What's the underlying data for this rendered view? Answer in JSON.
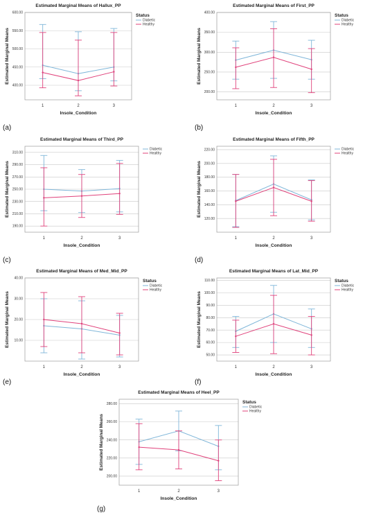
{
  "colors": {
    "diabetic": "#7fb6d9",
    "healthy": "#e0407a"
  },
  "chart_data": [
    {
      "id": "a",
      "type": "line",
      "panel_label": "(a)",
      "title": "Estimated Marginal Means of Hallux_PP",
      "xlabel": "Insole_Condition",
      "ylabel": "Estimated Marginal Means",
      "categories": [
        "1",
        "2",
        "3"
      ],
      "ylim": [
        360,
        600
      ],
      "yticks": [
        400,
        450,
        500,
        550,
        600
      ],
      "ytick_labels": [
        "400.00",
        "450.00",
        "500.00",
        "550.00",
        "600.00"
      ],
      "grid": true,
      "legend": {
        "title": "Status",
        "position": "top-right"
      },
      "series": [
        {
          "name": "Diabetic",
          "key": "diabetic",
          "values": [
            455,
            432,
            450
          ],
          "err_low": [
            418,
            385,
            412
          ],
          "err_high": [
            567,
            547,
            556
          ]
        },
        {
          "name": "Healthy",
          "key": "healthy",
          "values": [
            435,
            413,
            437
          ],
          "err_low": [
            393,
            371,
            398
          ],
          "err_high": [
            545,
            524,
            545
          ]
        }
      ]
    },
    {
      "id": "b",
      "type": "line",
      "panel_label": "(b)",
      "title": "Estimated Marginal Means of First_PP",
      "xlabel": "Insole_Condition",
      "ylabel": "Estimated Marginal Means",
      "categories": [
        "1",
        "2",
        "3"
      ],
      "ylim": [
        180,
        400
      ],
      "yticks": [
        200,
        250,
        300,
        350,
        400
      ],
      "ytick_labels": [
        "200.00",
        "250.00",
        "300.00",
        "350.00",
        "400.00"
      ],
      "grid": true,
      "legend": {
        "title": "Status",
        "position": "top-right"
      },
      "series": [
        {
          "name": "Diabetic",
          "key": "diabetic",
          "values": [
            280,
            305,
            281
          ],
          "err_low": [
            232,
            234,
            232
          ],
          "err_high": [
            328,
            377,
            330
          ]
        },
        {
          "name": "Healthy",
          "key": "healthy",
          "values": [
            262,
            287,
            257
          ],
          "err_low": [
            208,
            211,
            198
          ],
          "err_high": [
            311,
            359,
            309
          ]
        }
      ]
    },
    {
      "id": "c",
      "type": "line",
      "panel_label": "(c)",
      "title": "Estimated Marginal Means of Third_PP",
      "xlabel": "Insole_Condition",
      "ylabel": "Estimated Marginal Means",
      "categories": [
        "1",
        "2",
        "3"
      ],
      "ylim": [
        180,
        320
      ],
      "yticks": [
        190,
        210,
        230,
        250,
        270,
        290,
        310
      ],
      "ytick_labels": [
        "190.00",
        "210.00",
        "230.00",
        "250.00",
        "270.00",
        "290.00",
        "310.00"
      ],
      "grid": true,
      "legend": {
        "title": "",
        "position": "top-right"
      },
      "series": [
        {
          "name": "Diabetic",
          "key": "diabetic",
          "values": [
            250,
            247,
            251
          ],
          "err_low": [
            215,
            212,
            213
          ],
          "err_high": [
            305,
            282,
            297
          ]
        },
        {
          "name": "Healthy",
          "key": "healthy",
          "values": [
            236,
            239,
            243
          ],
          "err_low": [
            190,
            204,
            209
          ],
          "err_high": [
            285,
            274,
            292
          ]
        }
      ]
    },
    {
      "id": "d",
      "type": "line",
      "panel_label": "(d)",
      "title": "Estimated Marginal Means of Fifth_PP",
      "xlabel": "Insole_Condition",
      "ylabel": "Estimated Marginal Means",
      "categories": [
        "1",
        "2",
        "3"
      ],
      "ylim": [
        100,
        225
      ],
      "yticks": [
        120,
        140,
        160,
        180,
        200,
        220
      ],
      "ytick_labels": [
        "120.00",
        "140.00",
        "160.00",
        "180.00",
        "200.00",
        "220.00"
      ],
      "grid": true,
      "legend": {
        "title": "",
        "position": "top-right"
      },
      "series": [
        {
          "name": "Diabetic",
          "key": "diabetic",
          "values": [
            146,
            170,
            147
          ],
          "err_low": [
            108,
            129,
            118
          ],
          "err_high": [
            184,
            211,
            176
          ]
        },
        {
          "name": "Healthy",
          "key": "healthy",
          "values": [
            145,
            165,
            145
          ],
          "err_low": [
            107,
            124,
            116
          ],
          "err_high": [
            184,
            206,
            175
          ]
        }
      ]
    },
    {
      "id": "e",
      "type": "line",
      "panel_label": "(e)",
      "title": "Estimated Marginal Means of Med_Mid_PP",
      "xlabel": "Insole_Condition",
      "ylabel": "Estimated Marginal Means",
      "categories": [
        "1",
        "2",
        "3"
      ],
      "ylim": [
        0,
        40
      ],
      "yticks": [
        10,
        20,
        30,
        40
      ],
      "ytick_labels": [
        "10.00",
        "20.00",
        "30.00",
        "40.00"
      ],
      "grid": true,
      "legend": {
        "title": "Status",
        "position": "top-right"
      },
      "series": [
        {
          "name": "Diabetic",
          "key": "diabetic",
          "values": [
            17,
            15.5,
            12.5
          ],
          "err_low": [
            4,
            1,
            2
          ],
          "err_high": [
            30,
            29,
            22
          ]
        },
        {
          "name": "Healthy",
          "key": "healthy",
          "values": [
            20,
            18,
            13.5
          ],
          "err_low": [
            7,
            4,
            3
          ],
          "err_high": [
            33,
            31,
            23
          ]
        }
      ]
    },
    {
      "id": "f",
      "type": "line",
      "panel_label": "(f)",
      "title": "Estimated Marginal Means of Lat_Mid_PP",
      "xlabel": "Insole_Condition",
      "ylabel": "Estimated Marginal Means",
      "categories": [
        "1",
        "2",
        "3"
      ],
      "ylim": [
        45,
        112
      ],
      "yticks": [
        50,
        60,
        70,
        80,
        90,
        100,
        110
      ],
      "ytick_labels": [
        "50.00",
        "60.00",
        "70.00",
        "80.00",
        "90.00",
        "100.00",
        "110.00"
      ],
      "grid": true,
      "legend": {
        "title": "Status",
        "position": "top-right"
      },
      "series": [
        {
          "name": "Diabetic",
          "key": "diabetic",
          "values": [
            69,
            83,
            71
          ],
          "err_low": [
            56,
            60,
            56
          ],
          "err_high": [
            81,
            106,
            87
          ]
        },
        {
          "name": "Healthy",
          "key": "healthy",
          "values": [
            65,
            75,
            66
          ],
          "err_low": [
            52,
            51,
            50
          ],
          "err_high": [
            78,
            98,
            81
          ]
        }
      ]
    },
    {
      "id": "g",
      "type": "line",
      "panel_label": "(g)",
      "title": "Estimated Marginal Means of Heel_PP",
      "xlabel": "Insole_Condition",
      "ylabel": "Estimated Marginal Means",
      "categories": [
        "1",
        "2",
        "3"
      ],
      "ylim": [
        190,
        285
      ],
      "yticks": [
        200,
        220,
        240,
        260,
        280
      ],
      "ytick_labels": [
        "200.00",
        "220.00",
        "240.00",
        "260.00",
        "280.00"
      ],
      "grid": true,
      "legend": {
        "title": "Status",
        "position": "top-right"
      },
      "series": [
        {
          "name": "Diabetic",
          "key": "diabetic",
          "values": [
            238,
            250,
            233
          ],
          "err_low": [
            213,
            228,
            207
          ],
          "err_high": [
            263,
            272,
            256
          ]
        },
        {
          "name": "Healthy",
          "key": "healthy",
          "values": [
            232,
            229,
            217
          ],
          "err_low": [
            207,
            208,
            195
          ],
          "err_high": [
            258,
            250,
            240
          ]
        }
      ]
    }
  ]
}
